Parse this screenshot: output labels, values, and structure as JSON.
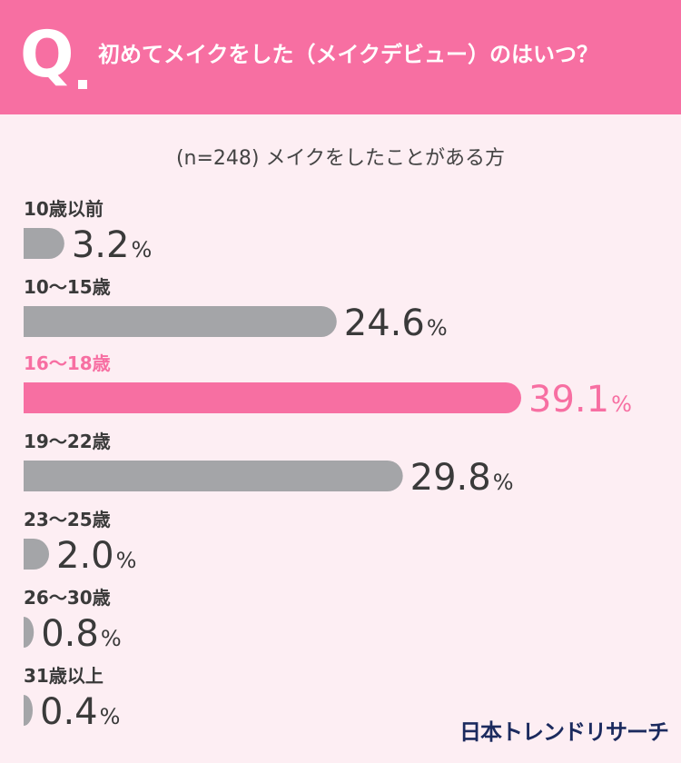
{
  "header": {
    "q_letter": "Q",
    "question": "初めてメイクをした（メイクデビュー）のはいつ？"
  },
  "subtitle": "(n=248) メイクをしたことがある方",
  "brand": "日本トレンドリサーチ",
  "colors": {
    "header_bg": "#f76fa2",
    "page_bg": "#fdeef3",
    "bar_default": "#a4a5a8",
    "bar_highlight": "#f76fa2",
    "text_default": "#3a3a3a"
  },
  "chart_data": {
    "type": "bar",
    "orientation": "horizontal",
    "unit": "%",
    "xlim": [
      0,
      39.1
    ],
    "highlight_index": 2,
    "categories": [
      "10歳以前",
      "10〜15歳",
      "16〜18歳",
      "19〜22歳",
      "23〜25歳",
      "26〜30歳",
      "31歳以上"
    ],
    "values": [
      3.2,
      24.6,
      39.1,
      29.8,
      2.0,
      0.8,
      0.4
    ],
    "value_labels": [
      "3.2",
      "24.6",
      "39.1",
      "29.8",
      "2.0",
      "0.8",
      "0.4"
    ]
  }
}
